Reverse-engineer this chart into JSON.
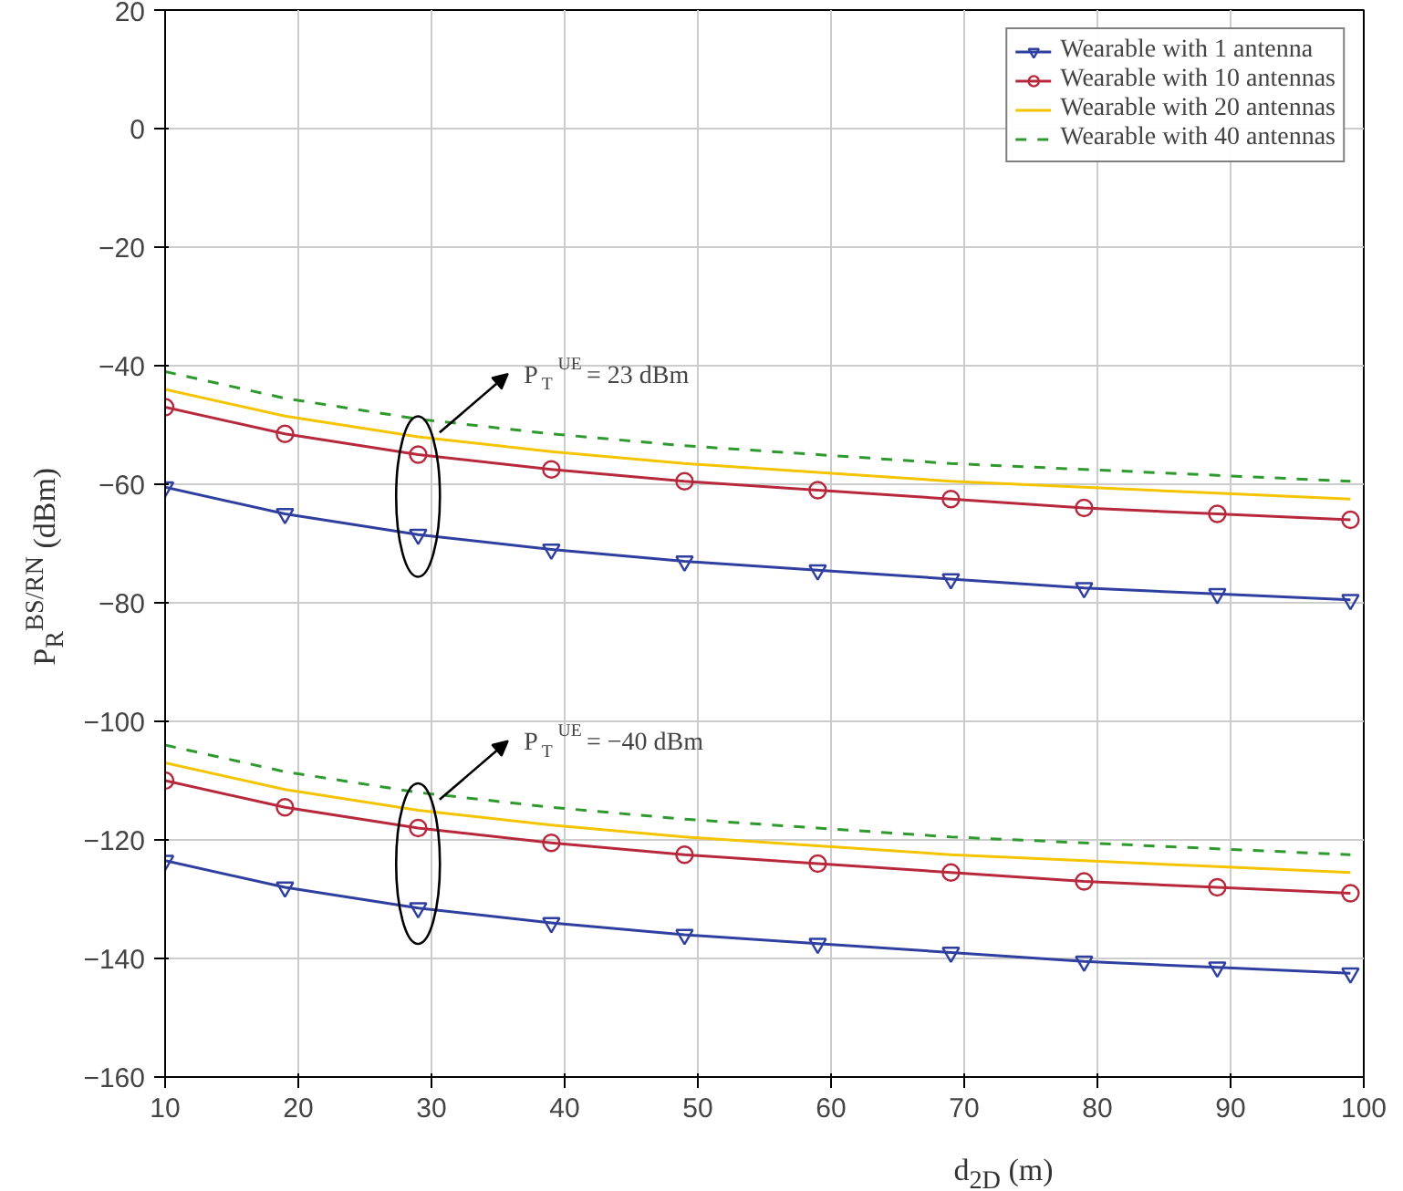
{
  "chart_data": {
    "type": "line",
    "xlabel": "d$_{2D}$ (m)",
    "ylabel": "P$_{R}$$^{BS/RN}$ (dBm)",
    "x": [
      10,
      19,
      29,
      39,
      49,
      59,
      69,
      79,
      89,
      99
    ],
    "series": [
      {
        "name": "Wearable with 1 antenna",
        "color": "#2e3fa0",
        "marker": "triangle",
        "line_style": "solid",
        "values": [
          -60.5,
          -65,
          -68.5,
          -71,
          -73,
          -74.5,
          -76,
          -77.5,
          -78.5,
          -79.5
        ]
      },
      {
        "name": "Wearable with 10 antennas",
        "color": "#b8283c",
        "marker": "circle",
        "line_style": "solid",
        "values": [
          -47,
          -51.5,
          -55,
          -57.5,
          -59.5,
          -61,
          -62.5,
          -64,
          -65,
          -66
        ]
      },
      {
        "name": "Wearable with 20 antennas",
        "color": "#f5c400",
        "marker": "none",
        "line_style": "solid",
        "values": [
          -44,
          -48.5,
          -52,
          -54.5,
          -56.5,
          -58,
          -59.5,
          -60.5,
          -61.5,
          -62.5
        ]
      },
      {
        "name": "Wearable with 40 antennas",
        "color": "#2e9a2e",
        "marker": "none",
        "line_style": "dashed",
        "values": [
          -41,
          -45.5,
          -49,
          -51.5,
          -53.5,
          -55,
          -56.5,
          -57.5,
          -58.5,
          -59.5
        ]
      },
      {
        "color": "#2e3fa0",
        "marker": "triangle",
        "line_style": "solid",
        "values": [
          -123.5,
          -128,
          -131.5,
          -134,
          -136,
          -137.5,
          -139,
          -140.5,
          -141.5,
          -142.5
        ]
      },
      {
        "color": "#b8283c",
        "marker": "circle",
        "line_style": "solid",
        "values": [
          -110,
          -114.5,
          -118,
          -120.5,
          -122.5,
          -124,
          -125.5,
          -127,
          -128,
          -129
        ]
      },
      {
        "color": "#f5c400",
        "marker": "none",
        "line_style": "solid",
        "values": [
          -107,
          -111.5,
          -115,
          -117.5,
          -119.5,
          -121,
          -122.5,
          -123.5,
          -124.5,
          -125.5
        ]
      },
      {
        "color": "#2e9a2e",
        "marker": "none",
        "line_style": "dashed",
        "values": [
          -104,
          -108.5,
          -112,
          -114.5,
          -116.5,
          -118,
          -119.5,
          -120.5,
          -121.5,
          -122.5
        ]
      }
    ],
    "xlim": [
      10,
      100
    ],
    "ylim": [
      -160,
      20
    ],
    "xticks": [
      10,
      20,
      30,
      40,
      50,
      60,
      70,
      80,
      90,
      100
    ],
    "yticks": [
      -160,
      -140,
      -120,
      -100,
      -80,
      -60,
      -40,
      -20,
      0,
      20
    ],
    "grid": true,
    "legend": "top right",
    "annotations": [
      "P$_{T}$$^{UE}$ = 23 dBm",
      "P$_{T}$$^{UE}$ = −40 dBm"
    ]
  }
}
